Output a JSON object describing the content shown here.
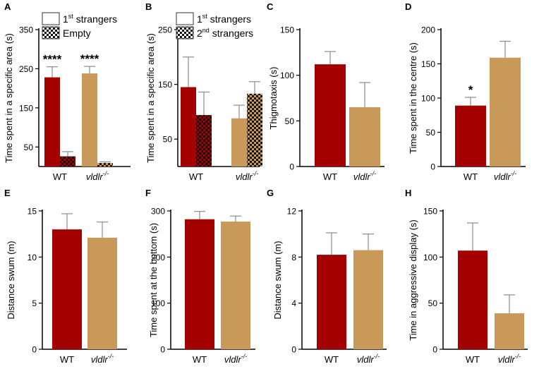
{
  "colors": {
    "wt": "#A50000",
    "vldlr": "#C9995A",
    "axis": "#000000",
    "error": "#8c8c8c"
  },
  "chart_data": [
    {
      "panel": "A",
      "type": "bar",
      "ylabel": "Time spent in a specific area (s)",
      "ylim": [
        0,
        350
      ],
      "yticks": [
        50,
        150,
        250,
        350
      ],
      "categories": [
        {
          "name": "WT",
          "italic": false,
          "sup": ""
        },
        {
          "name": "vldlr",
          "italic": true,
          "sup": "-/-"
        }
      ],
      "series": [
        {
          "name": "1st strangers",
          "values": [
            228,
            238
          ],
          "errors": [
            27,
            18
          ],
          "fill": "solid"
        },
        {
          "name": "Empty",
          "values": [
            26,
            9
          ],
          "errors": [
            12,
            3
          ],
          "fill": "checker"
        }
      ],
      "legend": [
        {
          "main": "1",
          "sup": "st",
          "rest": " strangers",
          "swatch": "white"
        },
        {
          "main": "Empty",
          "sup": "",
          "rest": "",
          "swatch": "checker"
        }
      ],
      "annotations": [
        {
          "group": 0,
          "text": "****"
        },
        {
          "group": 1,
          "text": "****"
        }
      ]
    },
    {
      "panel": "B",
      "type": "bar",
      "ylabel": "Time spent in a specific area (s)",
      "ylim": [
        0,
        250
      ],
      "yticks": [
        50,
        150,
        250
      ],
      "categories": [
        {
          "name": "WT",
          "italic": false,
          "sup": ""
        },
        {
          "name": "vldlr",
          "italic": true,
          "sup": "-/-"
        }
      ],
      "series": [
        {
          "name": "1st strangers",
          "values": [
            145,
            88
          ],
          "errors": [
            55,
            24
          ],
          "fill": "solid"
        },
        {
          "name": "2nd strangers",
          "values": [
            94,
            133
          ],
          "errors": [
            42,
            22
          ],
          "fill": "checker"
        }
      ],
      "legend": [
        {
          "main": "1",
          "sup": "st",
          "rest": " strangers",
          "swatch": "white"
        },
        {
          "main": "2",
          "sup": "nd",
          "rest": " strangers",
          "swatch": "checker"
        }
      ],
      "annotations": []
    },
    {
      "panel": "C",
      "type": "bar",
      "ylabel": "Thigmotaxis (s)",
      "ylim": [
        0,
        150
      ],
      "yticks": [
        0,
        50,
        100,
        150
      ],
      "categories": [
        {
          "name": "WT",
          "italic": false,
          "sup": ""
        },
        {
          "name": "vldlr",
          "italic": true,
          "sup": "-/-"
        }
      ],
      "values": [
        112,
        65
      ],
      "errors": [
        14,
        27
      ],
      "annotations": []
    },
    {
      "panel": "D",
      "type": "bar",
      "ylabel": "Time spent in the centre (s)",
      "ylim": [
        0,
        200
      ],
      "yticks": [
        0,
        50,
        100,
        150,
        200
      ],
      "categories": [
        {
          "name": "WT",
          "italic": false,
          "sup": ""
        },
        {
          "name": "vldlr",
          "italic": true,
          "sup": "-/-"
        }
      ],
      "values": [
        89,
        159
      ],
      "errors": [
        12,
        24
      ],
      "annotations": [
        {
          "group": 0,
          "text": "*"
        }
      ]
    },
    {
      "panel": "E",
      "type": "bar",
      "ylabel": "Distance swum (m)",
      "ylim": [
        0,
        15
      ],
      "yticks": [
        0,
        5,
        10,
        15
      ],
      "categories": [
        {
          "name": "WT",
          "italic": false,
          "sup": ""
        },
        {
          "name": "vldlr",
          "italic": true,
          "sup": "-/-"
        }
      ],
      "values": [
        13.0,
        12.1
      ],
      "errors": [
        1.7,
        1.7
      ],
      "annotations": []
    },
    {
      "panel": "F",
      "type": "bar",
      "ylabel": "Time spent at the bottom (s)",
      "ylim": [
        0,
        300
      ],
      "yticks": [
        0,
        100,
        200,
        300
      ],
      "categories": [
        {
          "name": "WT",
          "italic": false,
          "sup": ""
        },
        {
          "name": "vldlr",
          "italic": true,
          "sup": "-/-"
        }
      ],
      "values": [
        282,
        277
      ],
      "errors": [
        17,
        12
      ],
      "annotations": []
    },
    {
      "panel": "G",
      "type": "bar",
      "ylabel": "Distance swum (m)",
      "ylim": [
        0,
        12
      ],
      "yticks": [
        0,
        4,
        8,
        12
      ],
      "categories": [
        {
          "name": "WT",
          "italic": false,
          "sup": ""
        },
        {
          "name": "vldlr",
          "italic": true,
          "sup": "-/-"
        }
      ],
      "values": [
        8.2,
        8.6
      ],
      "errors": [
        1.9,
        1.4
      ],
      "annotations": []
    },
    {
      "panel": "H",
      "type": "bar",
      "ylabel": "Time in aggressive display (s)",
      "ylim": [
        0,
        150
      ],
      "yticks": [
        0,
        50,
        100,
        150
      ],
      "categories": [
        {
          "name": "WT",
          "italic": false,
          "sup": ""
        },
        {
          "name": "vldlr",
          "italic": true,
          "sup": "-/-"
        }
      ],
      "values": [
        107,
        39
      ],
      "errors": [
        30,
        20
      ],
      "annotations": []
    }
  ]
}
